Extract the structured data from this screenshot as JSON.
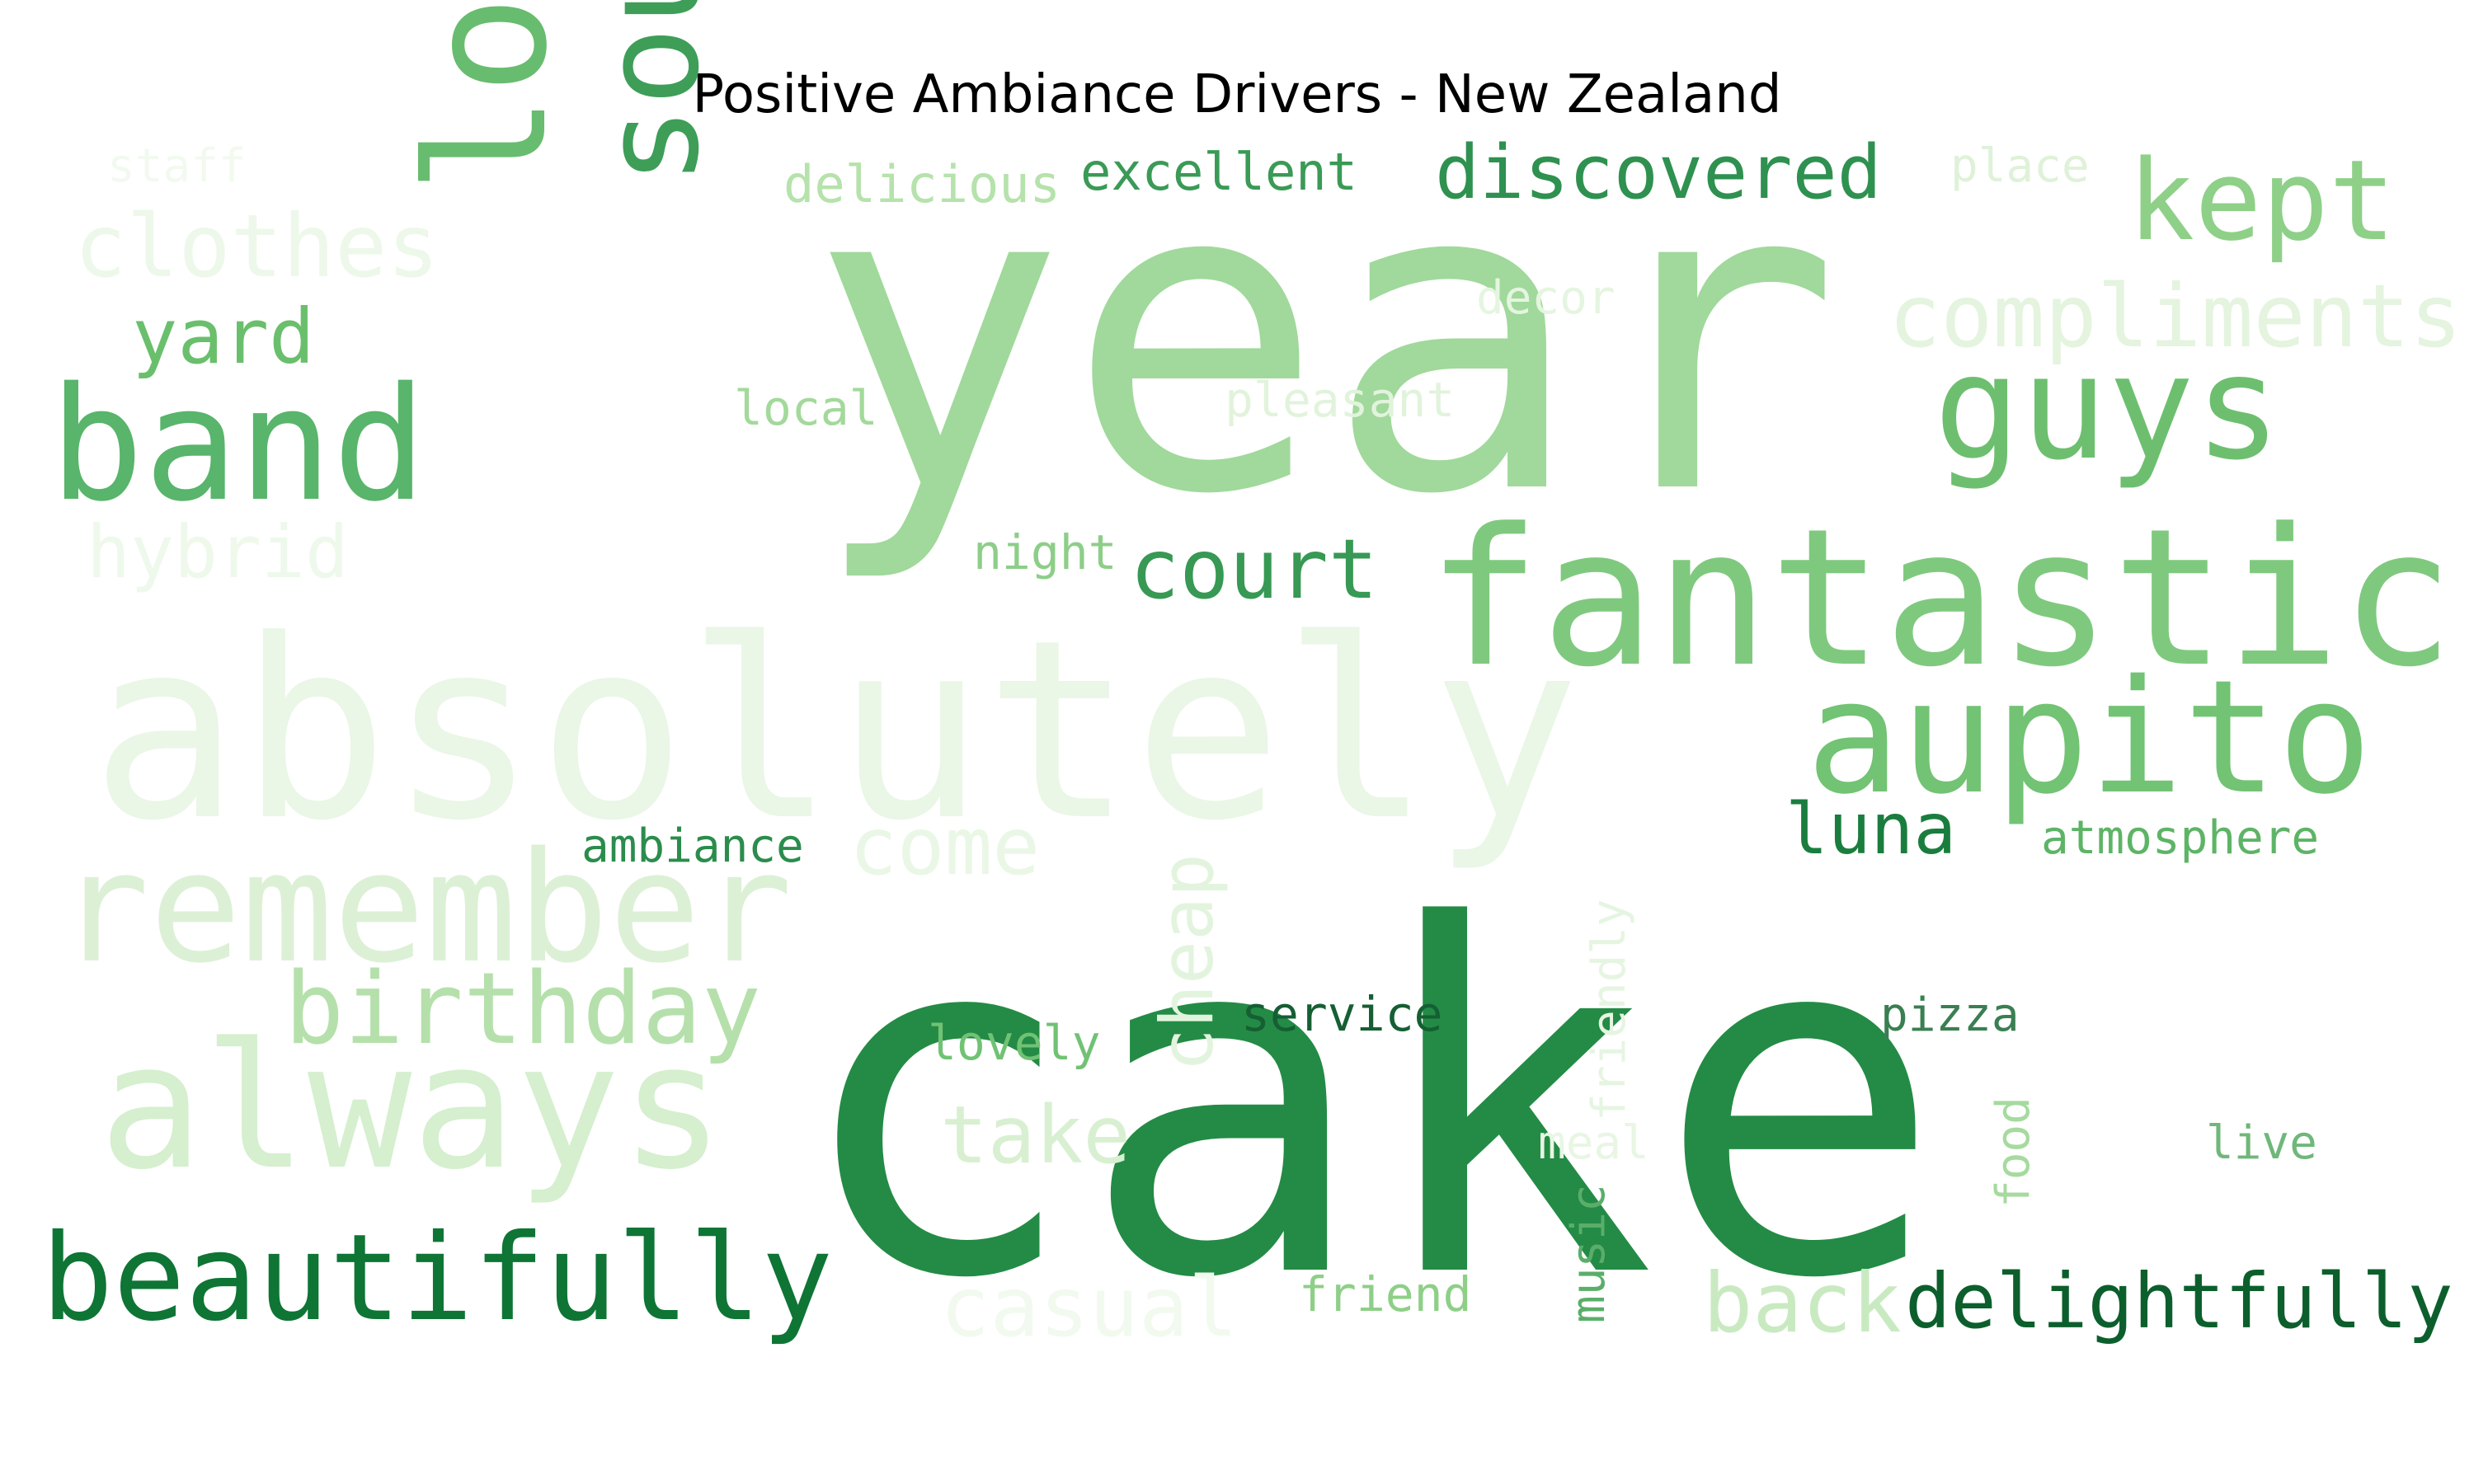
{
  "chart_data": {
    "type": "wordcloud",
    "title": "Positive Ambiance Drivers - New Zealand",
    "colormap": "Greens",
    "words": [
      {
        "text": "cake",
        "color": "#238b45"
      },
      {
        "text": "year",
        "color": "#a0d99b"
      },
      {
        "text": "absolutely",
        "color": "#eaf6e6"
      },
      {
        "text": "fantastic",
        "color": "#7fc97f"
      },
      {
        "text": "remember",
        "color": "#dcf0d6"
      },
      {
        "text": "always",
        "color": "#d5efcf"
      },
      {
        "text": "love",
        "color": "#68bc6f"
      },
      {
        "text": "sound",
        "color": "#3e9e58"
      },
      {
        "text": "band",
        "color": "#58b56b"
      },
      {
        "text": "aupito",
        "color": "#72c374"
      },
      {
        "text": "guys",
        "color": "#6dbf6f"
      },
      {
        "text": "beautifully",
        "color": "#0e7535"
      },
      {
        "text": "birthday",
        "color": "#b5e0ab"
      },
      {
        "text": "kept",
        "color": "#8ed088"
      },
      {
        "text": "compliments",
        "color": "#e4f4df"
      },
      {
        "text": "clothes",
        "color": "#edf8ea"
      },
      {
        "text": "discovered",
        "color": "#2e9150"
      },
      {
        "text": "court",
        "color": "#379954"
      },
      {
        "text": "delightfully",
        "color": "#0c5f2c"
      },
      {
        "text": "back",
        "color": "#c9eac1"
      },
      {
        "text": "casual",
        "color": "#f2faf0"
      },
      {
        "text": "take",
        "color": "#d8f0d1"
      },
      {
        "text": "come",
        "color": "#eaf7e6"
      },
      {
        "text": "hybrid",
        "color": "#eef9ec"
      },
      {
        "text": "yard",
        "color": "#6abf6c"
      },
      {
        "text": "cheap",
        "color": "#e3f4de"
      },
      {
        "text": "luna",
        "color": "#1a7d3e"
      },
      {
        "text": "excellent",
        "color": "#3a9a56"
      },
      {
        "text": "delicious",
        "color": "#b6e2ab"
      },
      {
        "text": "staff",
        "color": "#f2faf0"
      },
      {
        "text": "place",
        "color": "#dff2d9"
      },
      {
        "text": "decor",
        "color": "#e5f5e0"
      },
      {
        "text": "pleasant",
        "color": "#e2f3dc"
      },
      {
        "text": "local",
        "color": "#a3d99b"
      },
      {
        "text": "night",
        "color": "#8dce88"
      },
      {
        "text": "ambiance",
        "color": "#2b8c4c"
      },
      {
        "text": "atmosphere",
        "color": "#5db466"
      },
      {
        "text": "service",
        "color": "#155f33"
      },
      {
        "text": "friendly",
        "color": "#e6f5e1"
      },
      {
        "text": "lovely",
        "color": "#71c274"
      },
      {
        "text": "pizza",
        "color": "#3a7f52"
      },
      {
        "text": "meal",
        "color": "#e8f6e3"
      },
      {
        "text": "food",
        "color": "#a6da9f"
      },
      {
        "text": "live",
        "color": "#6fb77a"
      },
      {
        "text": "music",
        "color": "#5aae6a"
      },
      {
        "text": "friend",
        "color": "#8ecf87"
      }
    ]
  }
}
